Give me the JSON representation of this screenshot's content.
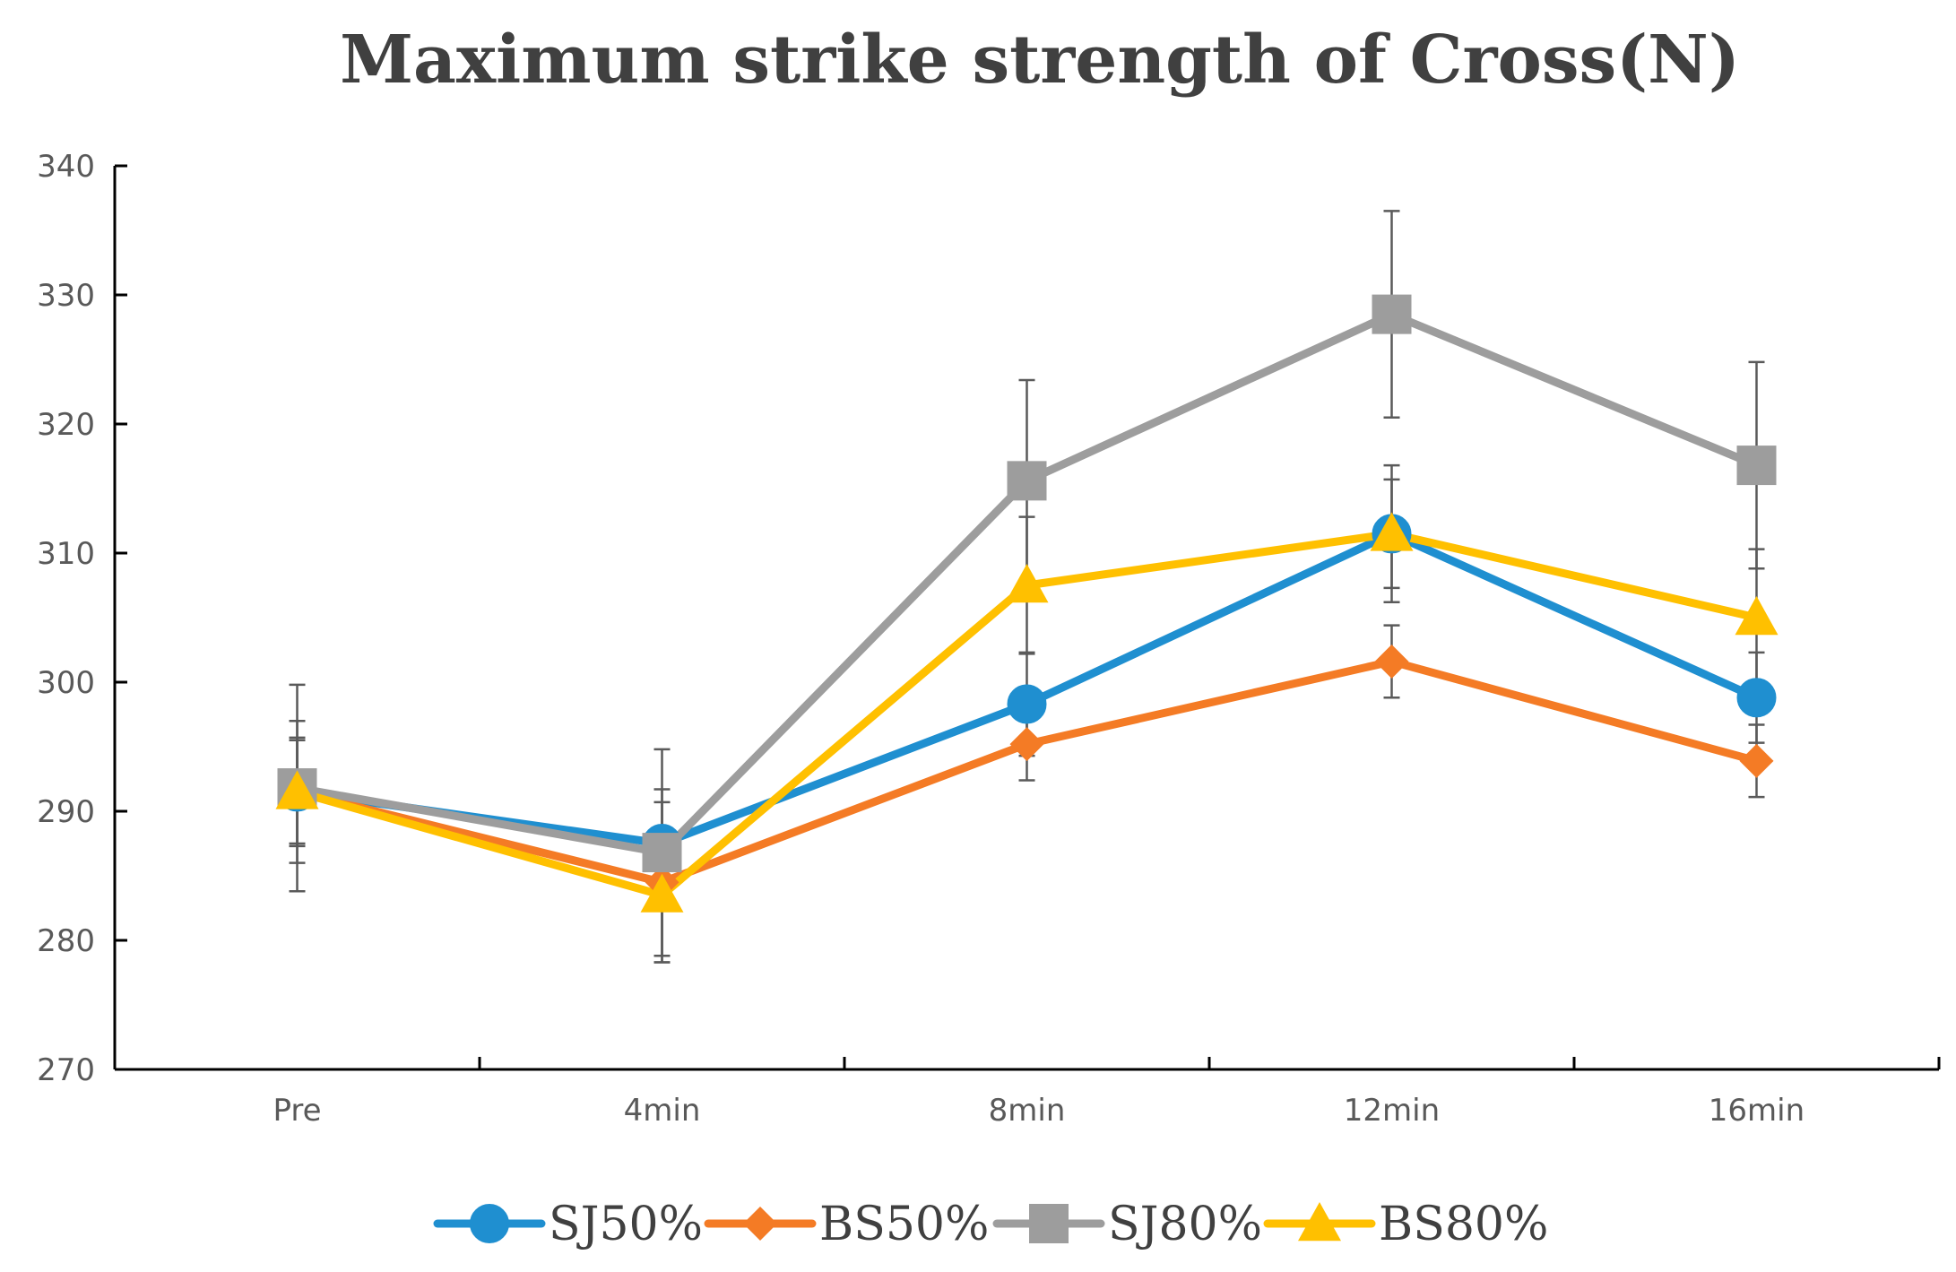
{
  "chart_data": {
    "type": "line",
    "title": "Maximum strike strength of Cross(N)",
    "xlabel": "",
    "ylabel": "",
    "categories": [
      "Pre",
      "4min",
      "8min",
      "12min",
      "16min"
    ],
    "ylim": [
      270,
      340
    ],
    "yticks": [
      270,
      280,
      290,
      300,
      310,
      320,
      330,
      340
    ],
    "grid": false,
    "legend_position": "bottom",
    "series": [
      {
        "name": "SJ50%",
        "color": "#1f8fd0",
        "marker": "circle",
        "values": [
          291.5,
          287.5,
          298.3,
          311.5,
          298.8
        ],
        "error": [
          5.5,
          4.2,
          4.0,
          4.2,
          3.5
        ]
      },
      {
        "name": "BS50%",
        "color": "#f47b25",
        "marker": "diamond",
        "values": [
          291.5,
          284.5,
          295.2,
          301.6,
          293.9
        ],
        "error": [
          4.2,
          6.2,
          2.8,
          2.8,
          2.8
        ]
      },
      {
        "name": "SJ80%",
        "color": "#9d9d9d",
        "marker": "square",
        "values": [
          291.8,
          286.8,
          315.6,
          328.5,
          316.8
        ],
        "error": [
          8.0,
          8.0,
          7.8,
          8.0,
          8.0
        ]
      },
      {
        "name": "BS80%",
        "color": "#ffc000",
        "marker": "triangle",
        "values": [
          291.5,
          283.5,
          307.5,
          311.5,
          305.0
        ],
        "error": [
          4.0,
          5.2,
          5.3,
          5.3,
          5.3
        ]
      }
    ]
  }
}
